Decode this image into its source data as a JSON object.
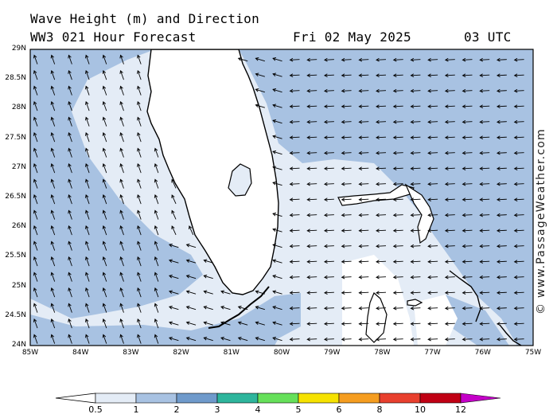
{
  "header": {
    "title": "Wave Height (m) and Direction",
    "subtitle": "WW3 021 Hour Forecast",
    "date": "Fri 02 May 2025",
    "time": "03 UTC"
  },
  "credit": "© www.PassageWeather.com",
  "map": {
    "region": "Florida / Bahamas",
    "lon_range": [
      -85,
      -75
    ],
    "lat_range": [
      24,
      29
    ],
    "lat_labels": [
      "29N",
      "28.5N",
      "28N",
      "27.5N",
      "27N",
      "26.5N",
      "26N",
      "25.5N",
      "25N",
      "24.5N",
      "24N"
    ],
    "lon_labels": [
      "85W",
      "84W",
      "83W",
      "82W",
      "81W",
      "80W",
      "79W",
      "78W",
      "77W",
      "76W",
      "75W"
    ]
  },
  "legend": {
    "labels": [
      "0.5",
      "1",
      "2",
      "3",
      "4",
      "5",
      "6",
      "8",
      "10",
      "12"
    ],
    "colors": [
      "#e4ecf6",
      "#a8c2e2",
      "#6f9acb",
      "#2eb59c",
      "#66e05a",
      "#f6e200",
      "#f59d20",
      "#e8402e",
      "#c00014",
      "#c400c8"
    ]
  }
}
